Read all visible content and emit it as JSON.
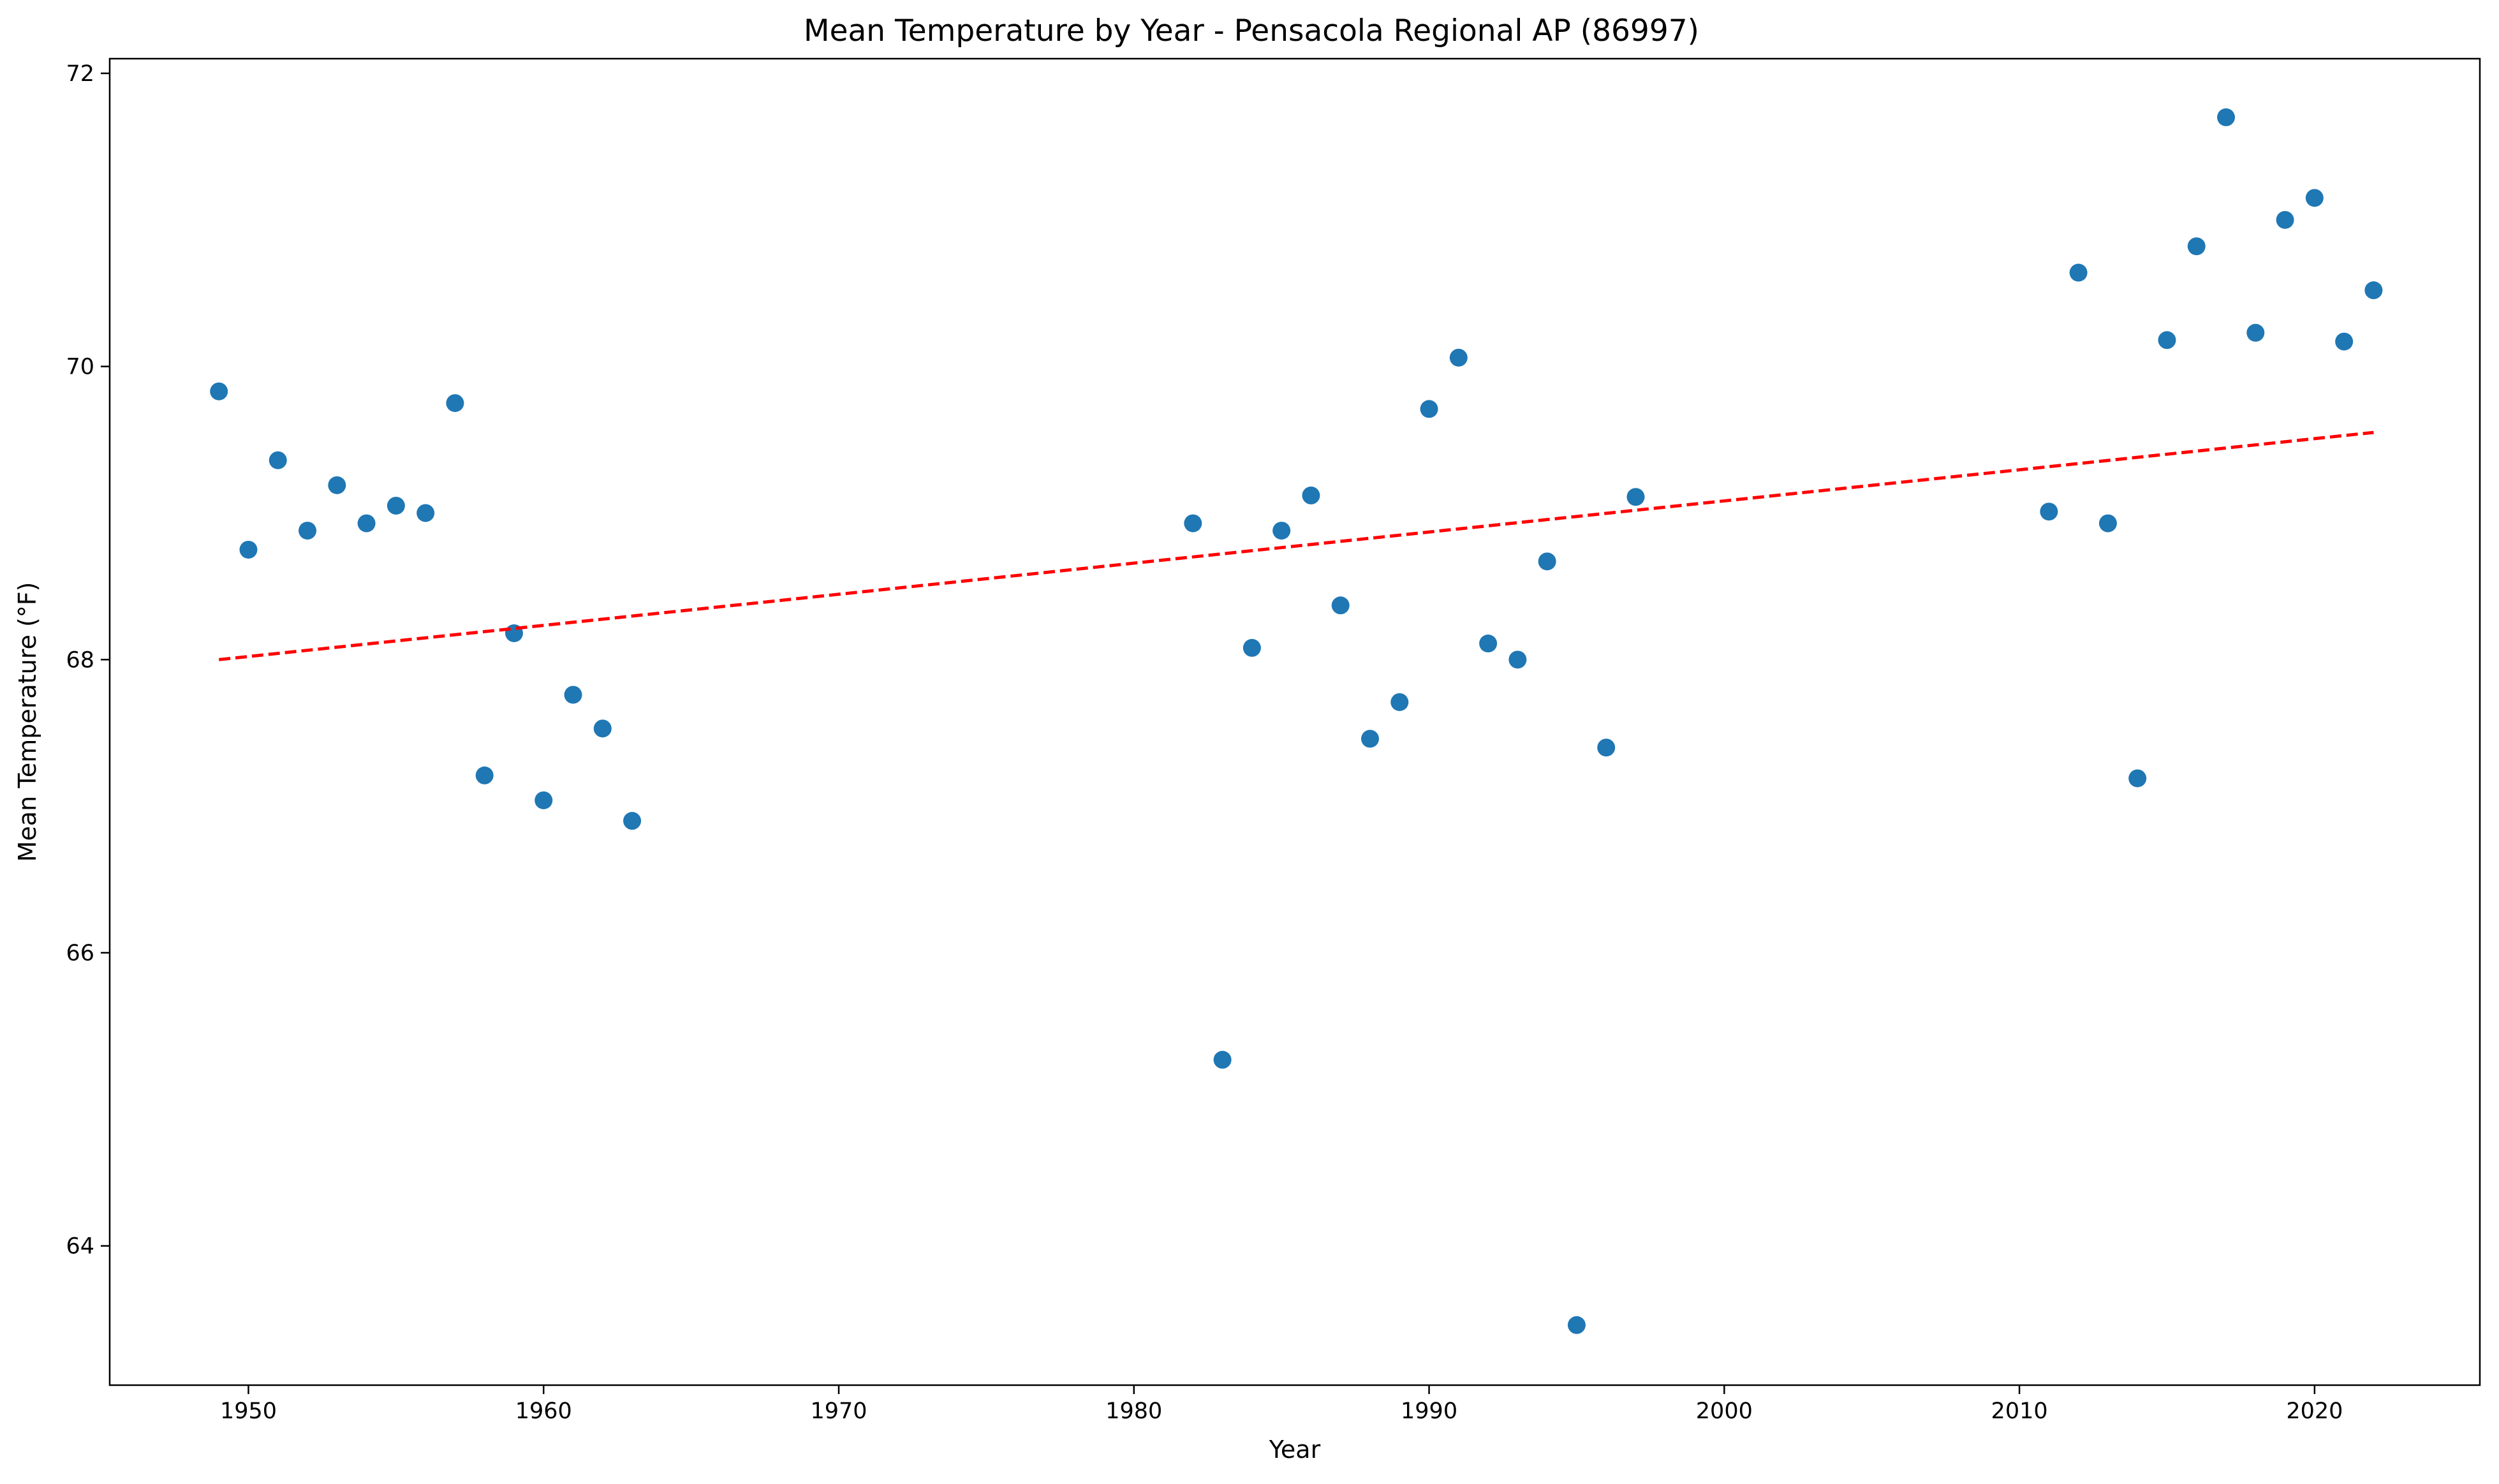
{
  "chart_data": {
    "type": "scatter",
    "title": "Mean Temperature by Year - Pensacola Regional AP (86997)",
    "xlabel": "Year",
    "ylabel": "Mean Temperature (°F)",
    "xlim": [
      1945.3,
      2025.6
    ],
    "ylim": [
      63.05,
      72.1
    ],
    "xticks": [
      1950,
      1960,
      1970,
      1980,
      1990,
      2000,
      2010,
      2020
    ],
    "yticks": [
      64,
      66,
      68,
      70,
      72
    ],
    "grid": false,
    "legend": "none",
    "points_color": "#1f77b4",
    "trend_color": "#ff0000",
    "series": [
      {
        "x": [
          1949,
          1950,
          1951,
          1952,
          1953,
          1954,
          1955,
          1956,
          1957,
          1958,
          1959,
          1960,
          1961,
          1962,
          1963,
          1982,
          1983,
          1984,
          1985,
          1986,
          1987,
          1988,
          1989,
          1990,
          1991,
          1992,
          1993,
          1994,
          1995,
          1996,
          1997,
          2011,
          2012,
          2013,
          2014,
          2015,
          2016,
          2017,
          2018,
          2019,
          2020,
          2021,
          2022
        ],
        "y": [
          69.83,
          68.75,
          69.36,
          68.88,
          69.19,
          68.93,
          69.05,
          69.0,
          69.75,
          67.21,
          68.18,
          67.04,
          67.76,
          67.53,
          66.9,
          68.93,
          65.27,
          68.08,
          68.88,
          69.12,
          68.37,
          67.46,
          67.71,
          69.71,
          70.06,
          68.11,
          68.0,
          68.67,
          63.46,
          67.4,
          69.11,
          69.01,
          70.64,
          68.93,
          67.19,
          70.18,
          70.82,
          71.7,
          70.23,
          71.0,
          71.15,
          70.17,
          70.52
        ]
      }
    ],
    "trendline": {
      "x": [
        1949,
        2022
      ],
      "y": [
        68.0,
        69.55
      ],
      "style": "dashed"
    }
  }
}
